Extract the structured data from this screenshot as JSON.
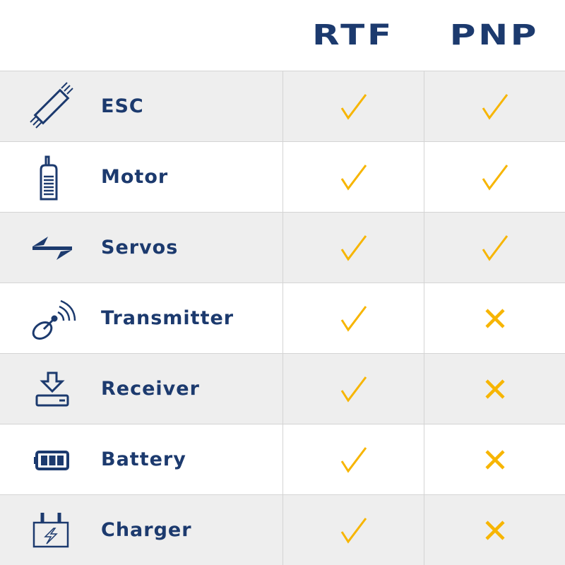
{
  "header": {
    "col1": "RTF",
    "col2": "PNP"
  },
  "colors": {
    "navy": "#1c3a6e",
    "accent": "#f7b500",
    "row_alt": "#eeeeee"
  },
  "rows": [
    {
      "label": "ESC",
      "icon": "esc-icon",
      "rtf": "check",
      "pnp": "check"
    },
    {
      "label": "Motor",
      "icon": "motor-icon",
      "rtf": "check",
      "pnp": "check"
    },
    {
      "label": "Servos",
      "icon": "servos-arrows-icon",
      "rtf": "check",
      "pnp": "check"
    },
    {
      "label": "Transmitter",
      "icon": "satellite-dish-icon",
      "rtf": "check",
      "pnp": "cross"
    },
    {
      "label": "Receiver",
      "icon": "receiver-download-icon",
      "rtf": "check",
      "pnp": "cross"
    },
    {
      "label": "Battery",
      "icon": "battery-icon",
      "rtf": "check",
      "pnp": "cross"
    },
    {
      "label": "Charger",
      "icon": "charger-icon",
      "rtf": "check",
      "pnp": "cross"
    }
  ]
}
